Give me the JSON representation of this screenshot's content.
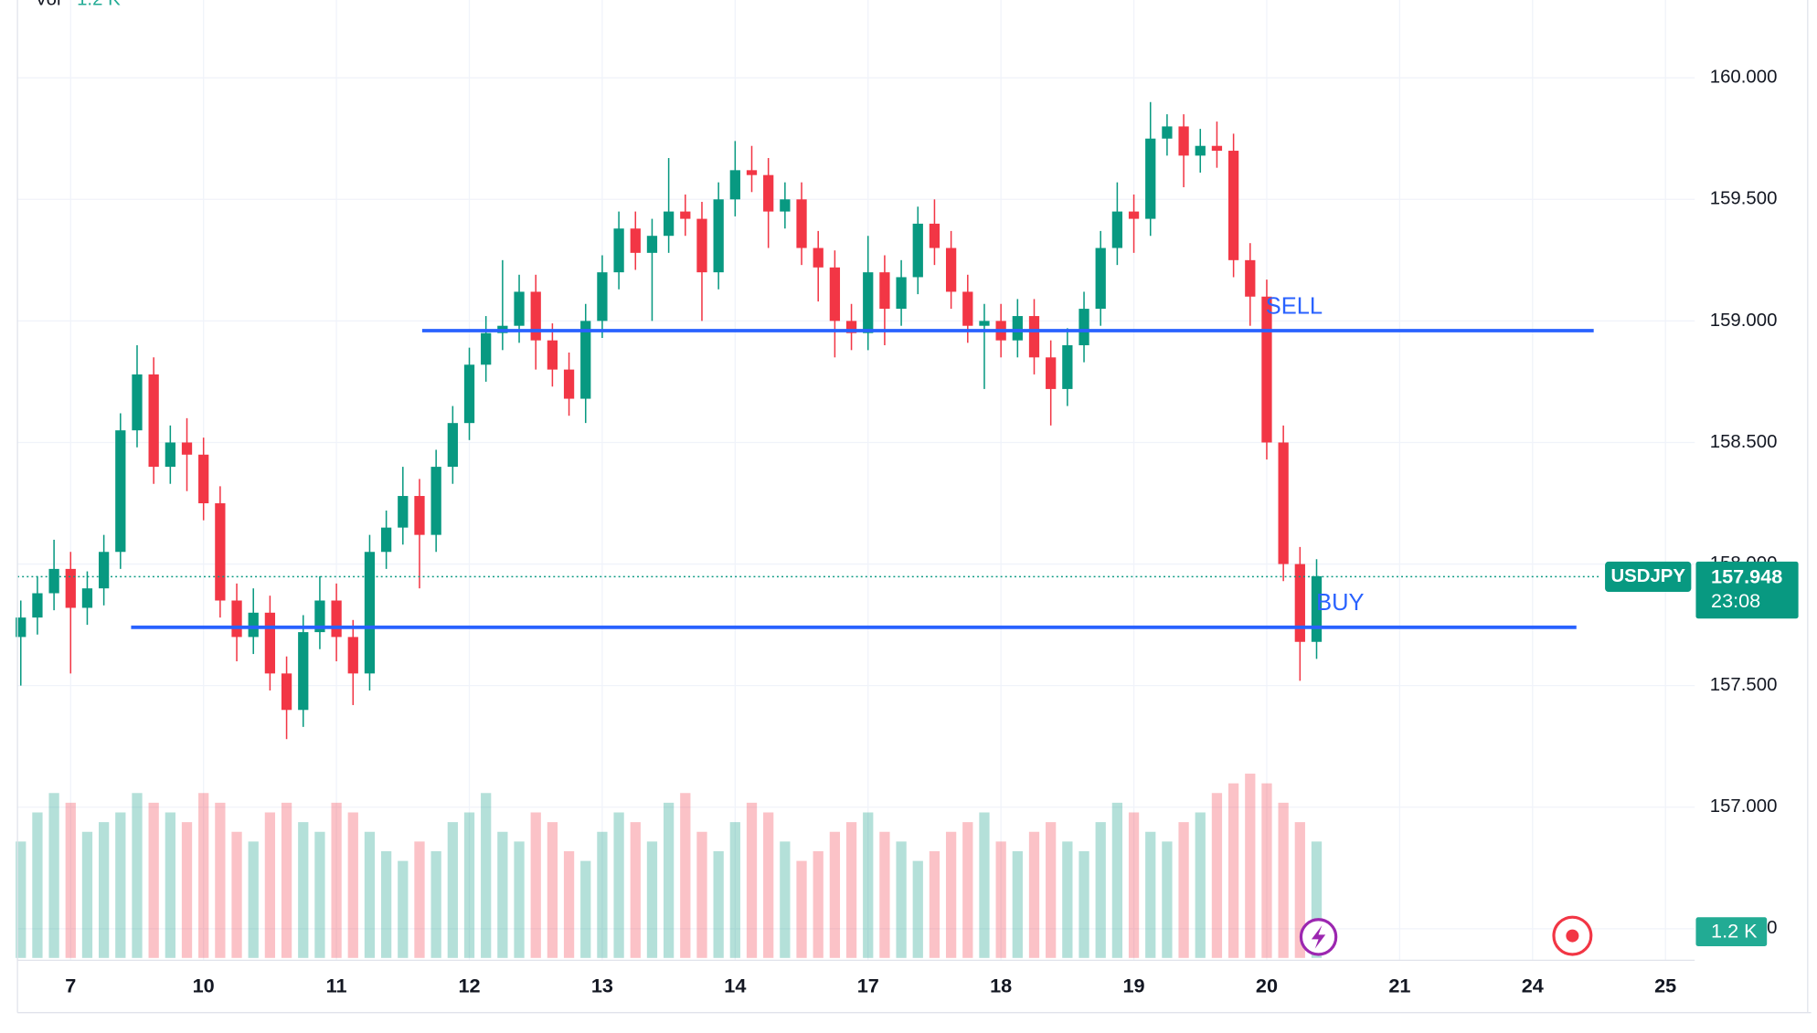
{
  "chart_data": {
    "type": "candlestick",
    "symbol": "USDJPY",
    "volume_title": "Vol",
    "volume_title_value": "1.2 K",
    "volume_label": "1.2 K",
    "countdown": "23:08",
    "last_price": 157.948,
    "up_color": "#089981",
    "down_color": "#f23645",
    "grid": true,
    "xlim": [
      -0.4,
      12.22
    ],
    "ylim": [
      156.38,
      160.32
    ],
    "volume_lim": [
      0,
      2400
    ],
    "xticks": [
      {
        "value": 0,
        "label": "7"
      },
      {
        "value": 1,
        "label": "10"
      },
      {
        "value": 2,
        "label": "11"
      },
      {
        "value": 3,
        "label": "12"
      },
      {
        "value": 4,
        "label": "13"
      },
      {
        "value": 5,
        "label": "14"
      },
      {
        "value": 6,
        "label": "17"
      },
      {
        "value": 7,
        "label": "18"
      },
      {
        "value": 8,
        "label": "19"
      },
      {
        "value": 9,
        "label": "20"
      },
      {
        "value": 10,
        "label": "21"
      },
      {
        "value": 11,
        "label": "24"
      },
      {
        "value": 12,
        "label": "25"
      }
    ],
    "yticks": [
      {
        "value": 156.5,
        "label": "156.500"
      },
      {
        "value": 157,
        "label": "157.000"
      },
      {
        "value": 157.5,
        "label": "157.500"
      },
      {
        "value": 158,
        "label": "158.000"
      },
      {
        "value": 158.5,
        "label": "158.500"
      },
      {
        "value": 159,
        "label": "159.000"
      },
      {
        "value": 159.5,
        "label": "159.500"
      },
      {
        "value": 160,
        "label": "160.000"
      }
    ],
    "hlines": [
      {
        "label": "SELL",
        "value": 158.96,
        "x": [
          2.645,
          11.46
        ],
        "color": "#2962ff"
      },
      {
        "label": "BUY",
        "value": 157.74,
        "x": [
          0.455,
          11.33
        ],
        "color": "#2962ff"
      }
    ],
    "x": [
      -0.375,
      -0.25,
      -0.125,
      0,
      0.125,
      0.25,
      0.375,
      0.5,
      0.625,
      0.75,
      0.875,
      1,
      1.125,
      1.25,
      1.375,
      1.5,
      1.625,
      1.75,
      1.875,
      2,
      2.125,
      2.25,
      2.375,
      2.5,
      2.625,
      2.75,
      2.875,
      3,
      3.125,
      3.25,
      3.375,
      3.5,
      3.625,
      3.75,
      3.875,
      4,
      4.125,
      4.25,
      4.375,
      4.5,
      4.625,
      4.75,
      4.875,
      5,
      5.125,
      5.25,
      5.375,
      5.5,
      5.625,
      5.75,
      5.875,
      6,
      6.125,
      6.25,
      6.375,
      6.5,
      6.625,
      6.75,
      6.875,
      7,
      7.125,
      7.25,
      7.375,
      7.5,
      7.625,
      7.75,
      7.875,
      8,
      8.125,
      8.25,
      8.375,
      8.5,
      8.625,
      8.75,
      8.875,
      9,
      9.125,
      9.25,
      9.375
    ],
    "open": [
      157.7,
      157.78,
      157.88,
      157.98,
      157.82,
      157.9,
      158.05,
      158.55,
      158.78,
      158.4,
      158.5,
      158.45,
      158.25,
      157.85,
      157.7,
      157.8,
      157.55,
      157.4,
      157.72,
      157.85,
      157.7,
      157.55,
      158.05,
      158.15,
      158.28,
      158.12,
      158.4,
      158.58,
      158.82,
      158.95,
      158.98,
      159.12,
      158.92,
      158.8,
      158.68,
      159.0,
      159.2,
      159.38,
      159.28,
      159.35,
      159.45,
      159.42,
      159.2,
      159.5,
      159.62,
      159.6,
      159.45,
      159.5,
      159.3,
      159.22,
      159.0,
      158.95,
      159.2,
      159.05,
      159.18,
      159.4,
      159.3,
      159.12,
      158.98,
      159.0,
      158.92,
      159.02,
      158.85,
      158.72,
      158.9,
      159.05,
      159.3,
      159.45,
      159.42,
      159.75,
      159.8,
      159.68,
      159.72,
      159.7,
      159.25,
      159.1,
      158.5,
      158.0,
      157.68
    ],
    "high": [
      157.85,
      157.95,
      158.1,
      158.05,
      157.97,
      158.12,
      158.62,
      158.9,
      158.85,
      158.57,
      158.6,
      158.52,
      158.32,
      157.92,
      157.9,
      157.87,
      157.62,
      157.79,
      157.95,
      157.92,
      157.77,
      158.12,
      158.22,
      158.4,
      158.35,
      158.47,
      158.65,
      158.89,
      159.02,
      159.25,
      159.19,
      159.19,
      158.99,
      158.87,
      159.07,
      159.27,
      159.45,
      159.45,
      159.42,
      159.67,
      159.52,
      159.49,
      159.57,
      159.74,
      159.72,
      159.67,
      159.57,
      159.57,
      159.37,
      159.29,
      159.07,
      159.35,
      159.27,
      159.25,
      159.47,
      159.5,
      159.37,
      159.19,
      159.07,
      159.07,
      159.09,
      159.09,
      158.92,
      158.97,
      159.12,
      159.37,
      159.57,
      159.52,
      159.9,
      159.85,
      159.85,
      159.79,
      159.82,
      159.77,
      159.32,
      159.17,
      158.57,
      158.07,
      158.02
    ],
    "low": [
      157.5,
      157.71,
      157.81,
      157.55,
      157.75,
      157.83,
      157.98,
      158.48,
      158.33,
      158.33,
      158.3,
      158.18,
      157.78,
      157.6,
      157.63,
      157.48,
      157.28,
      157.33,
      157.65,
      157.6,
      157.42,
      157.48,
      157.98,
      158.08,
      157.9,
      158.05,
      158.33,
      158.51,
      158.75,
      158.88,
      158.91,
      158.8,
      158.73,
      158.61,
      158.58,
      158.93,
      159.13,
      159.21,
      159.0,
      159.28,
      159.35,
      159.0,
      159.13,
      159.43,
      159.53,
      159.3,
      159.38,
      159.23,
      159.08,
      158.85,
      158.88,
      158.88,
      158.9,
      158.98,
      159.11,
      159.23,
      159.05,
      158.91,
      158.72,
      158.85,
      158.85,
      158.78,
      158.57,
      158.65,
      158.83,
      158.98,
      159.23,
      159.28,
      159.35,
      159.68,
      159.55,
      159.61,
      159.63,
      159.18,
      158.98,
      158.43,
      157.93,
      157.52,
      157.61
    ],
    "close": [
      157.78,
      157.88,
      157.98,
      157.82,
      157.9,
      158.05,
      158.55,
      158.78,
      158.4,
      158.5,
      158.45,
      158.25,
      157.85,
      157.7,
      157.8,
      157.55,
      157.4,
      157.72,
      157.85,
      157.7,
      157.55,
      158.05,
      158.15,
      158.28,
      158.12,
      158.4,
      158.58,
      158.82,
      158.95,
      158.98,
      159.12,
      158.92,
      158.8,
      158.68,
      159.0,
      159.2,
      159.38,
      159.28,
      159.35,
      159.45,
      159.42,
      159.2,
      159.5,
      159.62,
      159.6,
      159.45,
      159.5,
      159.3,
      159.22,
      159.0,
      158.95,
      159.2,
      159.05,
      159.18,
      159.4,
      159.3,
      159.12,
      158.98,
      159.0,
      158.92,
      159.02,
      158.85,
      158.72,
      158.9,
      159.05,
      159.3,
      159.45,
      159.42,
      159.75,
      159.8,
      159.68,
      159.72,
      159.7,
      159.25,
      159.1,
      158.5,
      158.0,
      157.68,
      157.95
    ],
    "volume": [
      1200,
      1500,
      1700,
      1600,
      1300,
      1400,
      1500,
      1700,
      1600,
      1500,
      1400,
      1700,
      1600,
      1300,
      1200,
      1500,
      1600,
      1400,
      1300,
      1600,
      1500,
      1300,
      1100,
      1000,
      1200,
      1100,
      1400,
      1500,
      1700,
      1300,
      1200,
      1500,
      1400,
      1100,
      1000,
      1300,
      1500,
      1400,
      1200,
      1600,
      1700,
      1300,
      1100,
      1400,
      1600,
      1500,
      1200,
      1000,
      1100,
      1300,
      1400,
      1500,
      1300,
      1200,
      1000,
      1100,
      1300,
      1400,
      1500,
      1200,
      1100,
      1300,
      1400,
      1200,
      1100,
      1400,
      1600,
      1500,
      1300,
      1200,
      1400,
      1500,
      1700,
      1800,
      1900,
      1800,
      1600,
      1400,
      1200
    ]
  }
}
